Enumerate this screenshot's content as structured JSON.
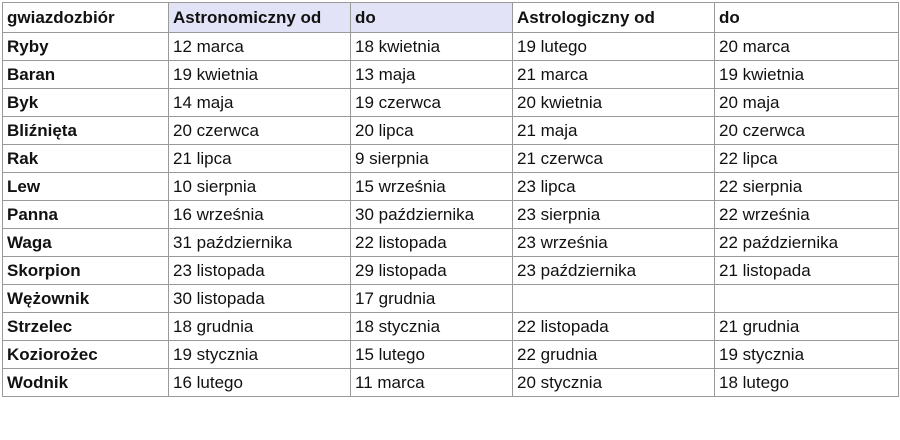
{
  "table": {
    "header": [
      "gwiazdozbiór",
      "Astronomiczny od",
      "do",
      "Astrologiczny od",
      "do"
    ],
    "rows": [
      [
        "Ryby",
        "12 marca",
        "18 kwietnia",
        "19 lutego",
        "20 marca"
      ],
      [
        "Baran",
        "19 kwietnia",
        "13 maja",
        "21 marca",
        "19 kwietnia"
      ],
      [
        "Byk",
        "14 maja",
        "19 czerwca",
        "20 kwietnia",
        "20 maja"
      ],
      [
        "Bliźnięta",
        "20 czerwca",
        "20 lipca",
        "21 maja",
        "20 czerwca"
      ],
      [
        "Rak",
        "21 lipca",
        "9 sierpnia",
        "21 czerwca",
        "22 lipca"
      ],
      [
        "Lew",
        "10 sierpnia",
        "15 września",
        "23 lipca",
        "22 sierpnia"
      ],
      [
        "Panna",
        "16 września",
        "30 października",
        "23 sierpnia",
        "22 września"
      ],
      [
        "Waga",
        "31 października",
        "22 listopada",
        "23 września",
        "22 października"
      ],
      [
        "Skorpion",
        "23 listopada",
        "29 listopada",
        "23 października",
        "21 listopada"
      ],
      [
        "Wężownik",
        "30 listopada",
        "17 grudnia",
        null,
        null
      ],
      [
        "Strzelec",
        "18 grudnia",
        "18 stycznia",
        "22 listopada",
        "21 grudnia"
      ],
      [
        "Koziorożec",
        "19 stycznia",
        "15 lutego",
        "22 grudnia",
        "19 stycznia"
      ],
      [
        "Wodnik",
        "16 lutego",
        "11 marca",
        "20 stycznia",
        "18 lutego"
      ]
    ]
  }
}
